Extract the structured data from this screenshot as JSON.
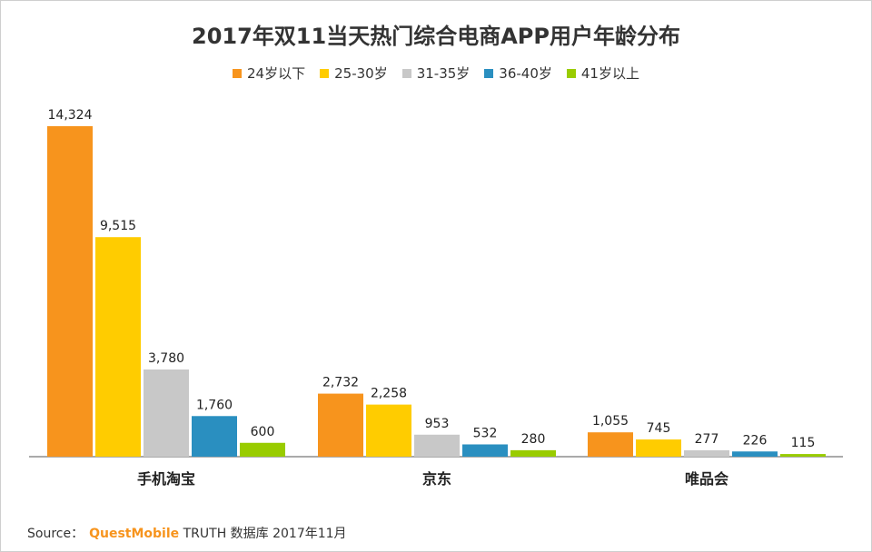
{
  "chart_data": {
    "type": "bar",
    "title": "2017年双11当天热门综合电商APP用户年龄分布",
    "categories": [
      "手机淘宝",
      "京东",
      "唯品会"
    ],
    "series": [
      {
        "name": "24岁以下",
        "color": "#f7941d",
        "values": [
          14324,
          2732,
          1055
        ],
        "labels": [
          "14,324",
          "2,732",
          "1,055"
        ]
      },
      {
        "name": "25-30岁",
        "color": "#ffcc00",
        "values": [
          9515,
          2258,
          745
        ],
        "labels": [
          "9,515",
          "2,258",
          "745"
        ]
      },
      {
        "name": "31-35岁",
        "color": "#c8c8c8",
        "values": [
          3780,
          953,
          277
        ],
        "labels": [
          "3,780",
          "953",
          "277"
        ]
      },
      {
        "name": "36-40岁",
        "color": "#2a8fc0",
        "values": [
          1760,
          532,
          226
        ],
        "labels": [
          "1,760",
          "532",
          "226"
        ]
      },
      {
        "name": "41岁以上",
        "color": "#99cc00",
        "values": [
          600,
          280,
          115
        ],
        "labels": [
          "600",
          "280",
          "115"
        ]
      }
    ],
    "legend_position": "top",
    "grid": false
  },
  "source": {
    "prefix": "Source：",
    "brand": "QuestMobile",
    "suffix": "TRUTH 数据库 2017年11月"
  }
}
